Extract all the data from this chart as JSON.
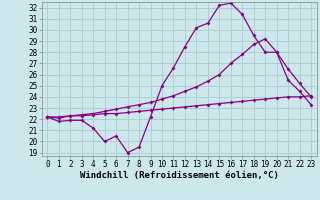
{
  "xlabel": "Windchill (Refroidissement éolien,°C)",
  "xlim": [
    -0.5,
    23.5
  ],
  "ylim": [
    18.7,
    32.5
  ],
  "xticks": [
    0,
    1,
    2,
    3,
    4,
    5,
    6,
    7,
    8,
    9,
    10,
    11,
    12,
    13,
    14,
    15,
    16,
    17,
    18,
    19,
    20,
    21,
    22,
    23
  ],
  "yticks": [
    19,
    20,
    21,
    22,
    23,
    24,
    25,
    26,
    27,
    28,
    29,
    30,
    31,
    32
  ],
  "bg_color": "#cce8ec",
  "line_color": "#880088",
  "grid_color": "#aacccc",
  "line1_x": [
    0,
    1,
    2,
    3,
    4,
    5,
    6,
    7,
    8,
    9,
    10,
    11,
    12,
    13,
    14,
    15,
    16,
    17,
    18,
    19,
    20,
    21,
    22,
    23
  ],
  "line1_y": [
    22.2,
    21.8,
    21.9,
    21.9,
    21.2,
    20.0,
    20.5,
    19.0,
    19.5,
    22.2,
    25.0,
    26.6,
    28.5,
    30.2,
    30.6,
    32.2,
    32.4,
    31.4,
    29.5,
    28.0,
    28.0,
    25.5,
    24.5,
    23.3
  ],
  "line2_x": [
    0,
    1,
    2,
    3,
    4,
    5,
    6,
    7,
    8,
    9,
    10,
    11,
    12,
    13,
    14,
    15,
    16,
    17,
    18,
    19,
    20,
    21,
    22,
    23
  ],
  "line2_y": [
    22.2,
    22.1,
    22.3,
    22.4,
    22.5,
    22.7,
    22.9,
    23.1,
    23.3,
    23.5,
    23.8,
    24.1,
    24.5,
    24.9,
    25.4,
    26.0,
    27.0,
    27.8,
    28.7,
    29.2,
    28.0,
    26.5,
    25.2,
    24.0
  ],
  "line3_x": [
    0,
    1,
    2,
    3,
    4,
    5,
    6,
    7,
    8,
    9,
    10,
    11,
    12,
    13,
    14,
    15,
    16,
    17,
    18,
    19,
    20,
    21,
    22,
    23
  ],
  "line3_y": [
    22.2,
    22.2,
    22.3,
    22.3,
    22.4,
    22.5,
    22.5,
    22.6,
    22.7,
    22.8,
    22.9,
    23.0,
    23.1,
    23.2,
    23.3,
    23.4,
    23.5,
    23.6,
    23.7,
    23.8,
    23.9,
    24.0,
    24.0,
    24.1
  ],
  "markersize": 2.0,
  "linewidth": 0.9,
  "tick_fontsize": 5.5,
  "xlabel_fontsize": 6.5
}
